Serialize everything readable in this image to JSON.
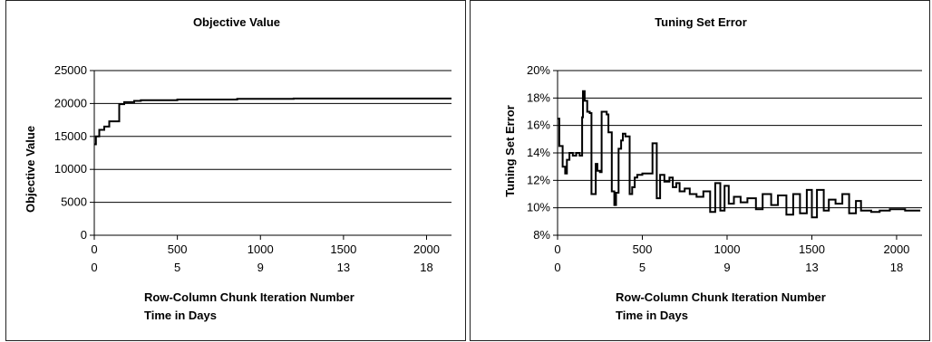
{
  "chart_data": [
    {
      "type": "line",
      "title": "Objective Value",
      "ylabel": "Objective Value",
      "xlabel_lines": [
        "Row-Column Chunk Iteration Number",
        "Time in Days"
      ],
      "ylim": [
        0,
        25000
      ],
      "yticks": [
        0,
        5000,
        10000,
        15000,
        20000,
        25000
      ],
      "ytick_labels": [
        "0",
        "5000",
        "10000",
        "15000",
        "20000",
        "25000"
      ],
      "xlim": [
        0,
        2150
      ],
      "xticks": [
        0,
        500,
        1000,
        1500,
        2000
      ],
      "xtick_labels": [
        "0",
        "500",
        "1000",
        "1500",
        "2000"
      ],
      "secondary_xtick_labels": [
        "0",
        "5",
        "9",
        "13",
        "18"
      ],
      "grid": "horizontal",
      "series": [
        {
          "x": [
            0,
            10,
            10,
            30,
            30,
            60,
            60,
            90,
            90,
            150,
            150,
            180,
            180,
            240,
            240,
            280,
            280,
            500,
            500,
            860,
            860,
            1200,
            1200,
            2150
          ],
          "y": [
            13800,
            13800,
            15000,
            15000,
            16000,
            16000,
            16500,
            16500,
            17300,
            17300,
            19900,
            19900,
            20200,
            20200,
            20400,
            20400,
            20500,
            20500,
            20600,
            20600,
            20700,
            20700,
            20750,
            20750
          ]
        }
      ]
    },
    {
      "type": "line",
      "title": "Tuning Set Error",
      "ylabel": "Tuning Set Error",
      "xlabel_lines": [
        "Row-Column Chunk Iteration Number",
        "Time in Days"
      ],
      "ylim": [
        8,
        20
      ],
      "yticks": [
        8,
        10,
        12,
        14,
        16,
        18,
        20
      ],
      "ytick_labels": [
        "8%",
        "10%",
        "12%",
        "14%",
        "16%",
        "18%",
        "20%"
      ],
      "xlim": [
        0,
        2150
      ],
      "xticks": [
        0,
        500,
        1000,
        1500,
        2000
      ],
      "xtick_labels": [
        "0",
        "500",
        "1000",
        "1500",
        "2000"
      ],
      "secondary_xtick_labels": [
        "0",
        "5",
        "9",
        "13",
        "18"
      ],
      "grid": "horizontal",
      "series": [
        {
          "x": [
            0,
            10,
            10,
            30,
            30,
            45,
            45,
            55,
            55,
            70,
            70,
            90,
            90,
            110,
            110,
            130,
            130,
            145,
            145,
            150,
            150,
            160,
            160,
            175,
            175,
            190,
            190,
            200,
            200,
            225,
            225,
            235,
            235,
            250,
            250,
            260,
            260,
            290,
            290,
            300,
            300,
            320,
            320,
            335,
            335,
            345,
            345,
            360,
            360,
            375,
            375,
            385,
            385,
            400,
            400,
            425,
            425,
            440,
            440,
            455,
            455,
            470,
            470,
            500,
            500,
            560,
            560,
            585,
            585,
            605,
            605,
            630,
            630,
            660,
            660,
            680,
            680,
            700,
            700,
            720,
            720,
            750,
            750,
            780,
            780,
            820,
            820,
            860,
            860,
            900,
            900,
            930,
            930,
            960,
            960,
            985,
            985,
            1010,
            1010,
            1040,
            1040,
            1080,
            1080,
            1120,
            1120,
            1170,
            1170,
            1210,
            1210,
            1260,
            1260,
            1300,
            1300,
            1350,
            1350,
            1390,
            1390,
            1430,
            1430,
            1470,
            1470,
            1500,
            1500,
            1530,
            1530,
            1570,
            1570,
            1600,
            1600,
            1640,
            1640,
            1680,
            1680,
            1720,
            1720,
            1760,
            1760,
            1790,
            1790,
            1850,
            1850,
            1900,
            1900,
            1960,
            1960,
            2050,
            2050,
            2140
          ],
          "y": [
            16.5,
            16.5,
            14.5,
            14.5,
            13.0,
            13.0,
            12.5,
            12.5,
            13.5,
            13.5,
            14.0,
            14.0,
            13.8,
            13.8,
            14.0,
            14.0,
            13.8,
            13.8,
            16.6,
            16.6,
            18.5,
            18.5,
            17.8,
            17.8,
            17.0,
            17.0,
            16.9,
            16.9,
            11.0,
            11.0,
            13.2,
            13.2,
            12.7,
            12.7,
            12.6,
            12.6,
            17.0,
            17.0,
            16.8,
            16.8,
            15.5,
            15.5,
            11.2,
            11.2,
            10.2,
            10.2,
            11.1,
            11.1,
            14.3,
            14.3,
            14.9,
            14.9,
            15.4,
            15.4,
            15.2,
            15.2,
            11.0,
            11.0,
            11.5,
            11.5,
            12.2,
            12.2,
            12.4,
            12.4,
            12.5,
            12.5,
            14.7,
            14.7,
            10.7,
            10.7,
            12.4,
            12.4,
            11.9,
            11.9,
            12.2,
            12.2,
            11.5,
            11.5,
            11.8,
            11.8,
            11.2,
            11.2,
            11.4,
            11.4,
            11.0,
            11.0,
            10.8,
            10.8,
            11.2,
            11.2,
            9.7,
            9.7,
            11.8,
            11.8,
            9.8,
            9.8,
            11.6,
            11.6,
            10.3,
            10.3,
            10.8,
            10.8,
            10.4,
            10.4,
            10.7,
            10.7,
            9.9,
            9.9,
            11.0,
            11.0,
            10.2,
            10.2,
            10.9,
            10.9,
            9.5,
            9.5,
            11.0,
            11.0,
            9.6,
            9.6,
            11.3,
            11.3,
            9.3,
            9.3,
            11.3,
            11.3,
            9.8,
            9.8,
            10.6,
            10.6,
            10.3,
            10.3,
            11.0,
            11.0,
            9.6,
            9.6,
            10.5,
            10.5,
            9.8,
            9.8,
            9.7,
            9.7,
            9.8,
            9.8,
            9.9,
            9.9,
            9.8,
            9.8
          ]
        }
      ]
    }
  ]
}
